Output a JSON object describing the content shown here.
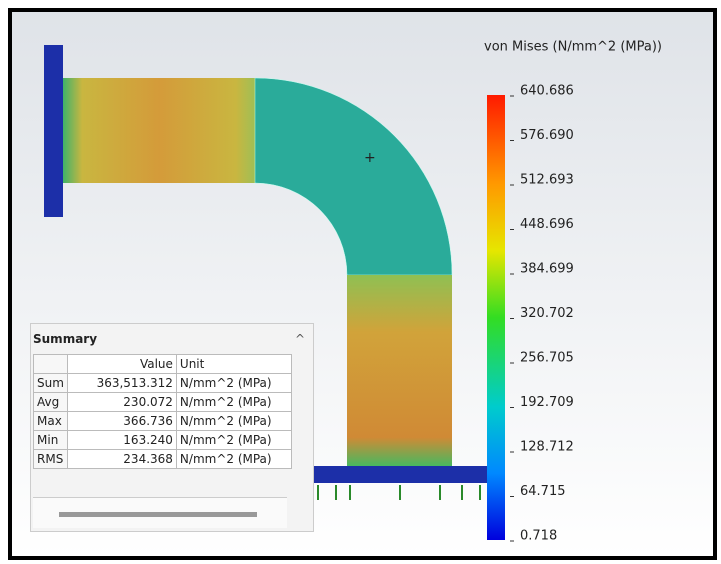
{
  "legend": {
    "title": "von Mises (N/mm^2 (MPa))",
    "labels": [
      "640.686",
      "576.690",
      "512.693",
      "448.696",
      "384.699",
      "320.702",
      "256.705",
      "192.709",
      "128.712",
      "64.715",
      "0.718"
    ]
  },
  "summary": {
    "title": "Summary",
    "columns": [
      "Value",
      "Unit"
    ],
    "rows": [
      [
        "Sum",
        "363,513.312",
        "N/mm^2 (MPa)"
      ],
      [
        "Avg",
        "230.072",
        "N/mm^2 (MPa)"
      ],
      [
        "Max",
        "366.736",
        "N/mm^2 (MPa)"
      ],
      [
        "Min",
        "163.240",
        "N/mm^2 (MPa)"
      ],
      [
        "RMS",
        "234.368",
        "N/mm^2 (MPa)"
      ]
    ]
  }
}
